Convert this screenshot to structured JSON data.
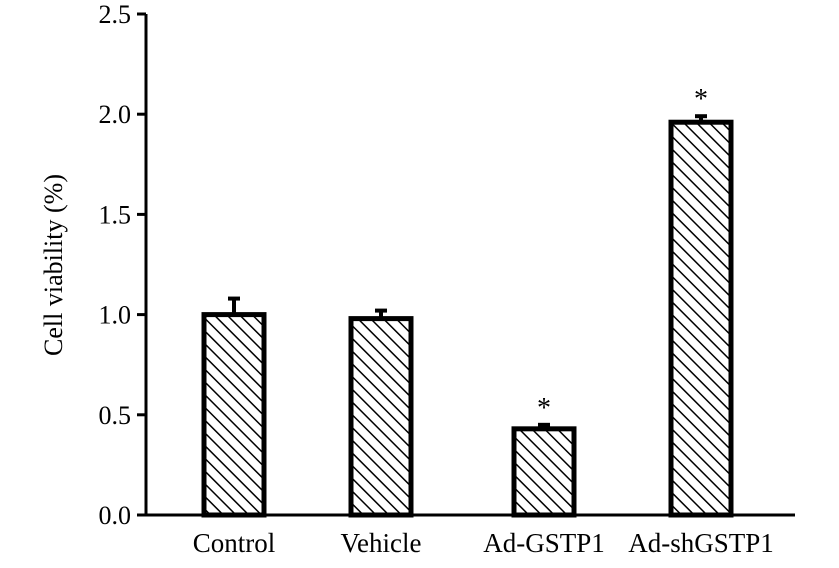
{
  "chart_data": {
    "type": "bar",
    "title": "",
    "xlabel": "",
    "ylabel": "Cell viability (%)",
    "ylim": [
      0,
      2.5
    ],
    "yticks": [
      "0.0",
      "0.5",
      "1.0",
      "1.5",
      "2.0",
      "2.5"
    ],
    "ytick_values": [
      0,
      0.5,
      1.0,
      1.5,
      2.0,
      2.5
    ],
    "categories": [
      "Control",
      "Vehicle",
      "Ad-GSTP1",
      "Ad-shGSTP1"
    ],
    "values": [
      1.0,
      0.98,
      0.43,
      1.96
    ],
    "errors": [
      0.08,
      0.04,
      0.02,
      0.03
    ],
    "annotations": [
      "",
      "",
      "*",
      "*"
    ],
    "bar_pattern": "diagonal-hatch",
    "bar_color": "#000000",
    "grid": false,
    "legend": "none"
  }
}
